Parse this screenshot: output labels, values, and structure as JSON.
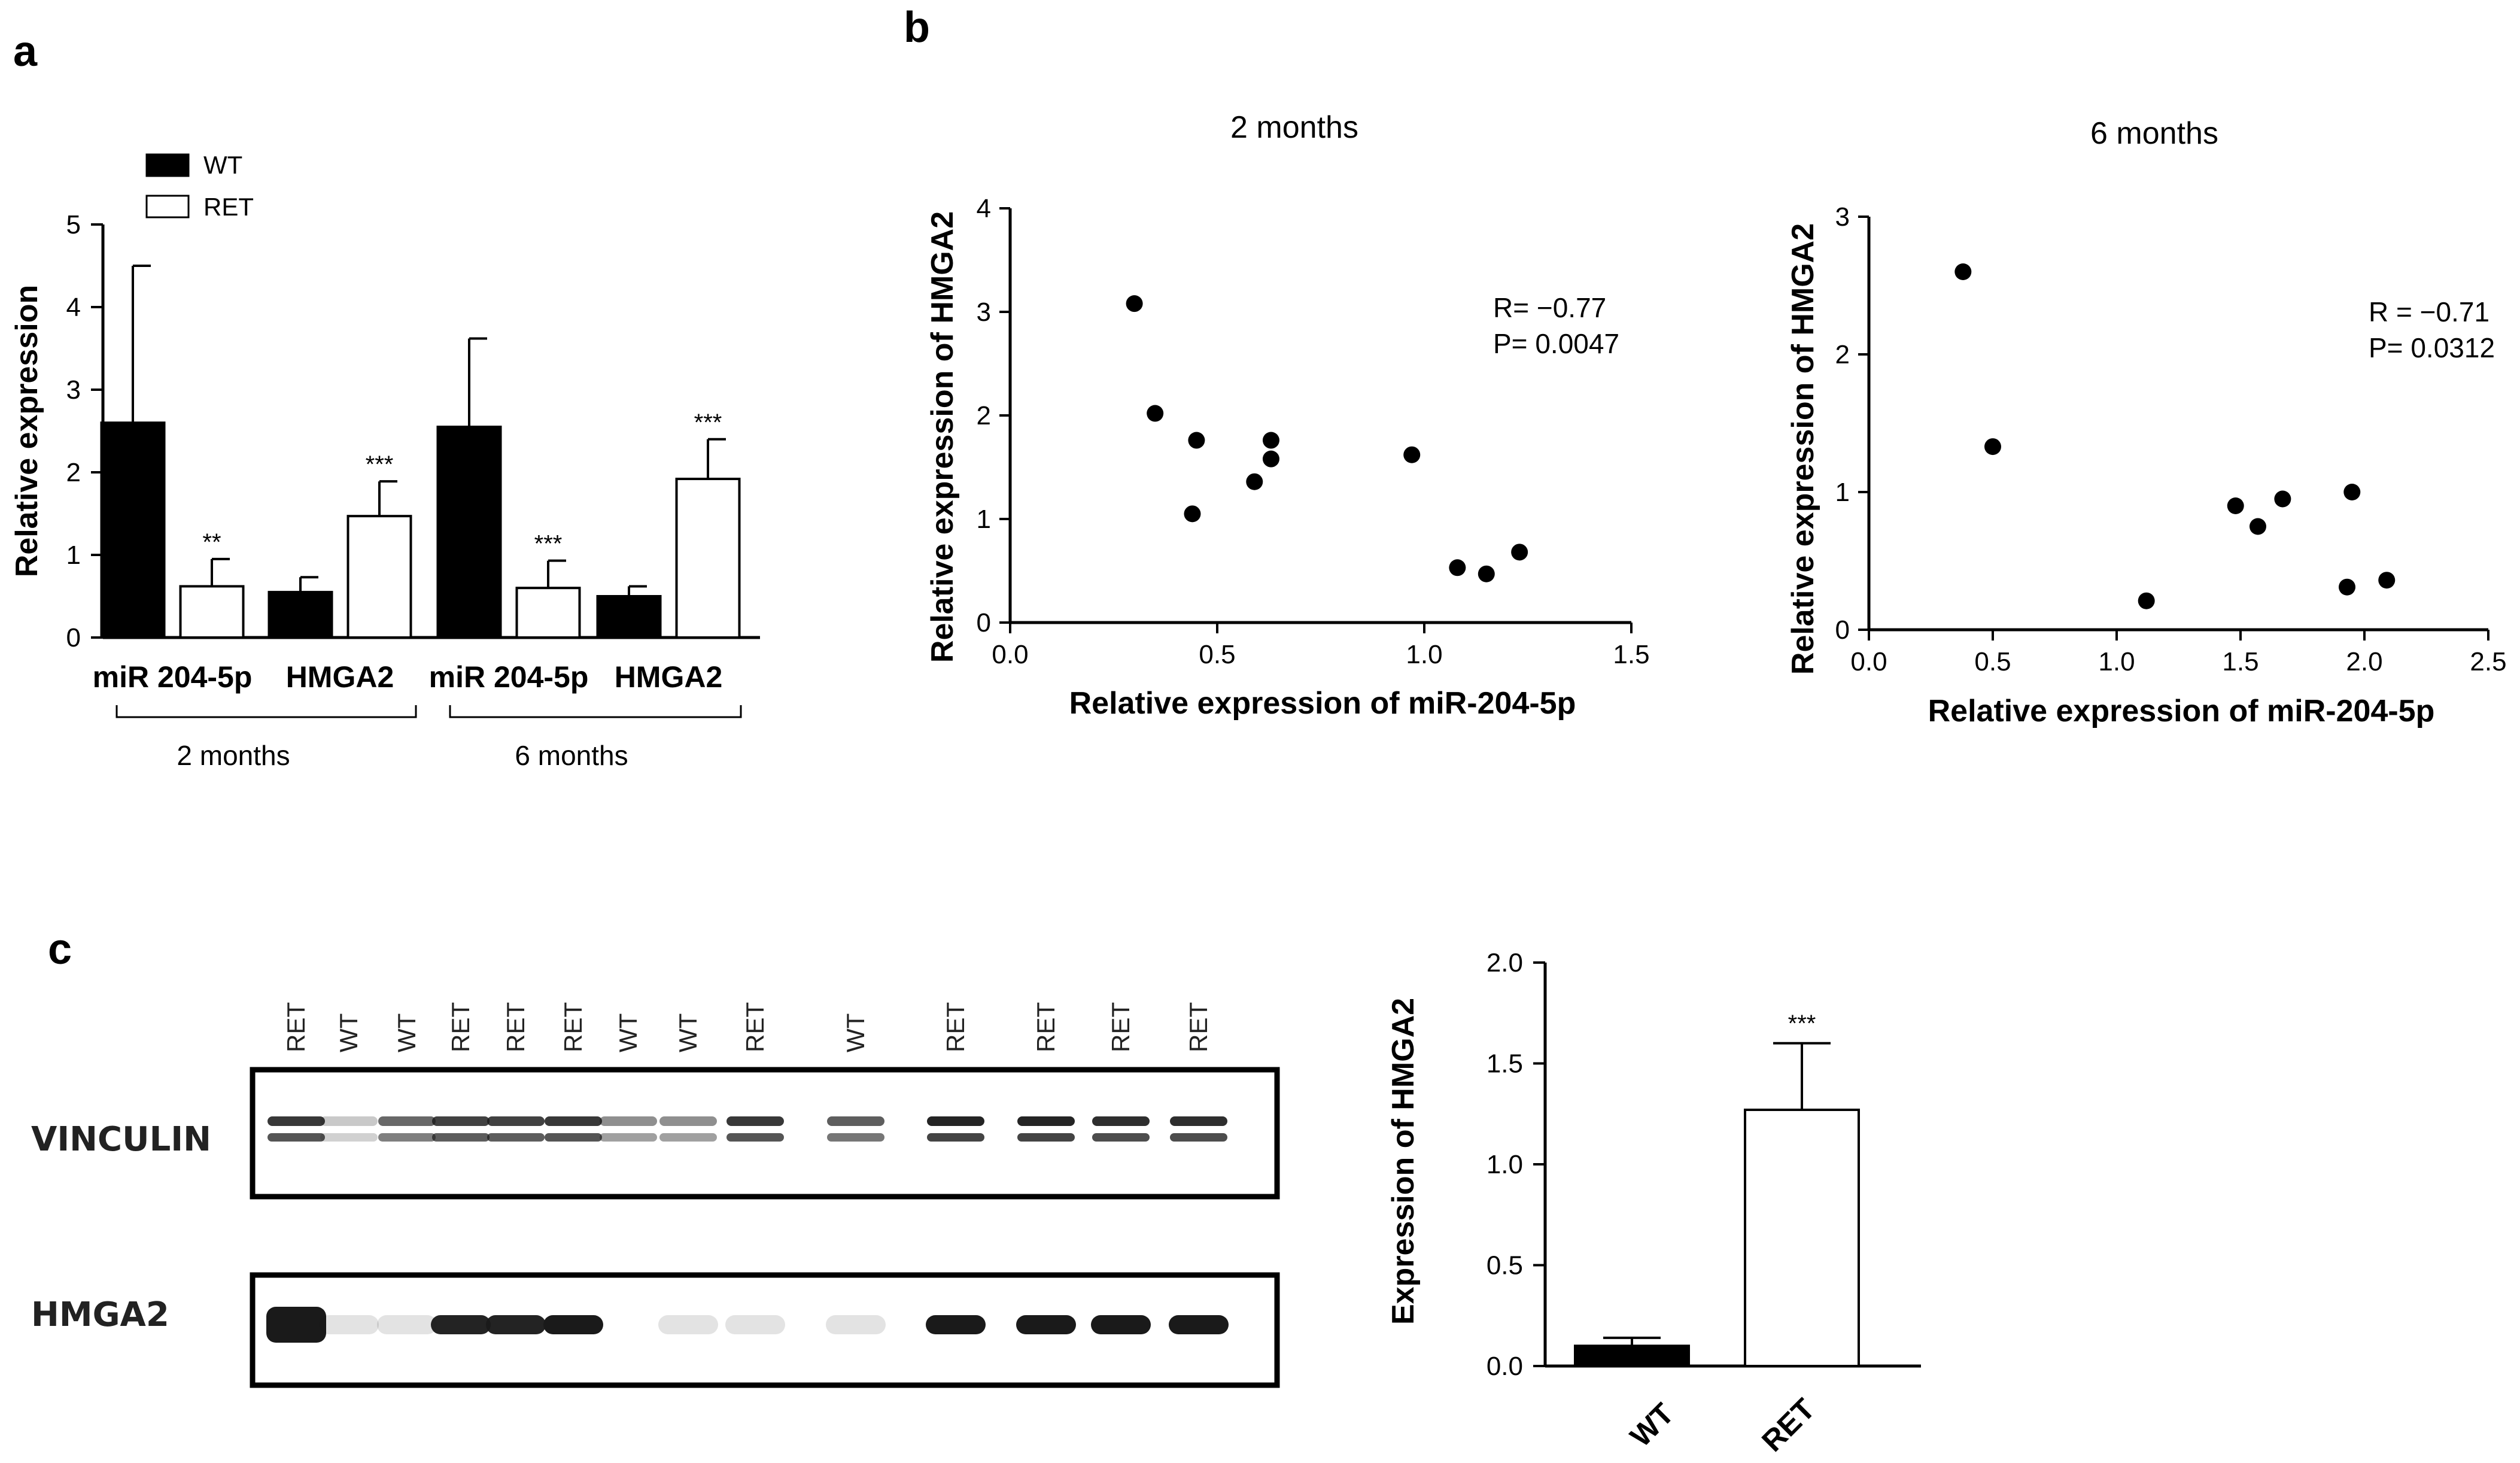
{
  "panels": {
    "a": "a",
    "b": "b",
    "c": "c"
  },
  "colors": {
    "wt_fill": "#000000",
    "ret_fill": "#ffffff",
    "stroke": "#000000",
    "band": "#1a1a1a"
  },
  "chart_data": [
    {
      "id": "a",
      "type": "bar",
      "ylabel": "Relative expression",
      "ylim": [
        0,
        5
      ],
      "yticks": [
        0,
        1,
        2,
        3,
        4,
        5
      ],
      "legend": [
        "WT",
        "RET"
      ],
      "legend_position": "top-left",
      "categories": [
        "miR 204-5p",
        "HMGA2",
        "miR 204-5p",
        "HMGA2"
      ],
      "groups": [
        {
          "label": "2 months",
          "categories": [
            0,
            1
          ]
        },
        {
          "label": "6 months",
          "categories": [
            2,
            3
          ]
        }
      ],
      "series": [
        {
          "name": "WT",
          "values": [
            2.6,
            0.55,
            2.55,
            0.5
          ],
          "errors": [
            1.9,
            0.18,
            1.07,
            0.12
          ],
          "sig": [
            "",
            "",
            "",
            ""
          ]
        },
        {
          "name": "RET",
          "values": [
            0.62,
            1.47,
            0.6,
            1.92
          ],
          "errors": [
            0.33,
            0.42,
            0.33,
            0.48
          ],
          "sig": [
            "**",
            "***",
            "***",
            "***"
          ]
        }
      ]
    },
    {
      "id": "b1",
      "type": "scatter",
      "title": "2 months",
      "xlabel": "Relative expression of miR-204-5p",
      "ylabel": "Relative expression of HMGA2",
      "xlim": [
        0.0,
        1.5
      ],
      "ylim": [
        0,
        4
      ],
      "xticks": [
        "0.0",
        "0.5",
        "1.0",
        "1.5"
      ],
      "yticks": [
        "0",
        "1",
        "2",
        "3",
        "4"
      ],
      "stats": [
        "R= −0.77",
        "P= 0.0047"
      ],
      "points": [
        [
          0.3,
          3.08
        ],
        [
          0.35,
          2.02
        ],
        [
          0.45,
          1.76
        ],
        [
          0.44,
          1.05
        ],
        [
          0.59,
          1.36
        ],
        [
          0.63,
          1.76
        ],
        [
          0.63,
          1.58
        ],
        [
          0.97,
          1.62
        ],
        [
          1.08,
          0.53
        ],
        [
          1.15,
          0.47
        ],
        [
          1.23,
          0.68
        ]
      ]
    },
    {
      "id": "b2",
      "type": "scatter",
      "title": "6 months",
      "xlabel": "Relative expression of miR-204-5p",
      "ylabel": "Relative expression of HMGA2",
      "xlim": [
        0.0,
        2.5
      ],
      "ylim": [
        0,
        3
      ],
      "xticks": [
        "0.0",
        "0.5",
        "1.0",
        "1.5",
        "2.0",
        "2.5"
      ],
      "yticks": [
        "0",
        "1",
        "2",
        "3"
      ],
      "stats": [
        "R = −0.71",
        "P= 0.0312"
      ],
      "points": [
        [
          0.38,
          2.6
        ],
        [
          0.5,
          1.33
        ],
        [
          1.12,
          0.21
        ],
        [
          1.48,
          0.9
        ],
        [
          1.57,
          0.75
        ],
        [
          1.67,
          0.95
        ],
        [
          1.95,
          1.0
        ],
        [
          1.93,
          0.31
        ],
        [
          2.09,
          0.36
        ]
      ]
    },
    {
      "id": "c",
      "type": "bar",
      "ylabel": "Expression of HMGA2",
      "ylim": [
        0,
        2.0
      ],
      "yticks": [
        "0.0",
        "0.5",
        "1.0",
        "1.5",
        "2.0"
      ],
      "categories": [
        "WT",
        "RET"
      ],
      "values": [
        0.1,
        1.27
      ],
      "errors": [
        0.04,
        0.33
      ],
      "sig": [
        "",
        "***"
      ]
    }
  ],
  "blot": {
    "lanes": [
      "RET",
      "WT",
      "WT",
      "RET",
      "RET",
      "RET",
      "WT",
      "WT",
      "RET",
      "WT",
      "RET",
      "RET",
      "RET",
      "RET"
    ],
    "rows": [
      {
        "label": "VINCULIN",
        "intensity": [
          0.85,
          0.1,
          0.6,
          0.8,
          0.8,
          0.85,
          0.4,
          0.4,
          0.85,
          0.65,
          0.95,
          0.95,
          0.9,
          0.9
        ]
      },
      {
        "label": "HMGA2",
        "intensity": [
          1.0,
          0.05,
          0.05,
          0.95,
          0.95,
          1.0,
          0.0,
          0.05,
          0.05,
          0.05,
          1.0,
          1.0,
          1.0,
          1.0
        ]
      }
    ]
  }
}
